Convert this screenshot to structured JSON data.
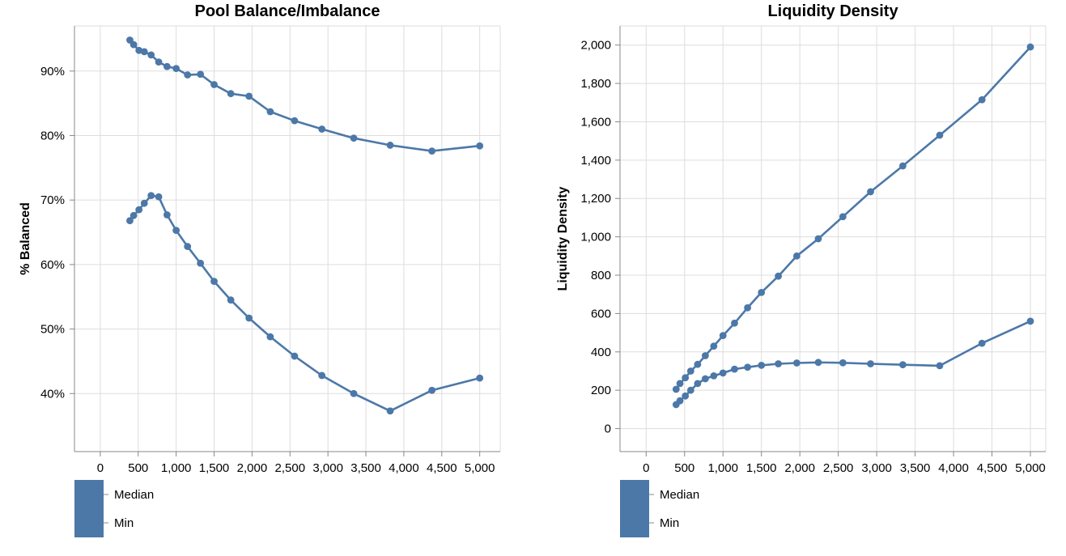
{
  "chart_data": [
    {
      "type": "line",
      "title": "Pool Balance/Imbalance",
      "xlabel": "",
      "ylabel": "% Balanced",
      "x_ticks": [
        "0",
        "500",
        "1,000",
        "1,500",
        "2,000",
        "2,500",
        "3,000",
        "3,500",
        "4,000",
        "4,500",
        "5,000"
      ],
      "y_ticks": [
        "40%",
        "50%",
        "60%",
        "70%",
        "80%",
        "90%"
      ],
      "xlim": [
        -340,
        5270
      ],
      "ylim": [
        0.31,
        0.97
      ],
      "grid": true,
      "legend": {
        "position": "bottom-left",
        "entries": [
          "Median",
          "Min"
        ]
      },
      "color": "#4c78a8",
      "series": [
        {
          "name": "Median",
          "x": [
            390,
            440,
            510,
            580,
            670,
            770,
            880,
            1000,
            1150,
            1320,
            1500,
            1720,
            1960,
            2240,
            2560,
            2920,
            3340,
            3820,
            4370,
            5000
          ],
          "y": [
            0.948,
            0.941,
            0.932,
            0.93,
            0.925,
            0.914,
            0.907,
            0.904,
            0.894,
            0.895,
            0.879,
            0.865,
            0.861,
            0.837,
            0.823,
            0.81,
            0.796,
            0.785,
            0.776,
            0.784
          ]
        },
        {
          "name": "Min",
          "x": [
            390,
            440,
            510,
            580,
            670,
            770,
            880,
            1000,
            1150,
            1320,
            1500,
            1720,
            1960,
            2240,
            2560,
            2920,
            3340,
            3820,
            4370,
            5000
          ],
          "y": [
            0.668,
            0.676,
            0.685,
            0.695,
            0.707,
            0.705,
            0.677,
            0.653,
            0.628,
            0.602,
            0.574,
            0.545,
            0.517,
            0.488,
            0.458,
            0.428,
            0.4,
            0.373,
            0.405,
            0.424
          ]
        }
      ]
    },
    {
      "type": "line",
      "title": "Liquidity Density",
      "xlabel": "",
      "ylabel": "Liquidity Density",
      "x_ticks": [
        "0",
        "500",
        "1,000",
        "1,500",
        "2,000",
        "2,500",
        "3,000",
        "3,500",
        "4,000",
        "4,500",
        "5,000"
      ],
      "y_ticks": [
        "0",
        "200",
        "400",
        "600",
        "800",
        "1,000",
        "1,200",
        "1,400",
        "1,600",
        "1,800",
        "2,000"
      ],
      "xlim": [
        -340,
        5200
      ],
      "ylim": [
        -120,
        2100
      ],
      "grid": true,
      "legend": {
        "position": "bottom-left",
        "entries": [
          "Median",
          "Min"
        ]
      },
      "color": "#4c78a8",
      "series": [
        {
          "name": "Median",
          "x": [
            390,
            440,
            510,
            580,
            670,
            770,
            880,
            1000,
            1150,
            1320,
            1500,
            1720,
            1960,
            2240,
            2560,
            2920,
            3340,
            3820,
            4370,
            5000
          ],
          "y": [
            205,
            235,
            265,
            300,
            335,
            380,
            430,
            485,
            550,
            630,
            710,
            795,
            900,
            990,
            1105,
            1235,
            1370,
            1530,
            1715,
            1990
          ]
        },
        {
          "name": "Min",
          "x": [
            390,
            440,
            510,
            580,
            670,
            770,
            880,
            1000,
            1150,
            1320,
            1500,
            1720,
            1960,
            2240,
            2560,
            2920,
            3340,
            3820,
            4370,
            5000
          ],
          "y": [
            125,
            145,
            170,
            200,
            235,
            260,
            275,
            290,
            310,
            320,
            330,
            338,
            342,
            345,
            343,
            338,
            333,
            328,
            445,
            560
          ]
        }
      ]
    }
  ]
}
